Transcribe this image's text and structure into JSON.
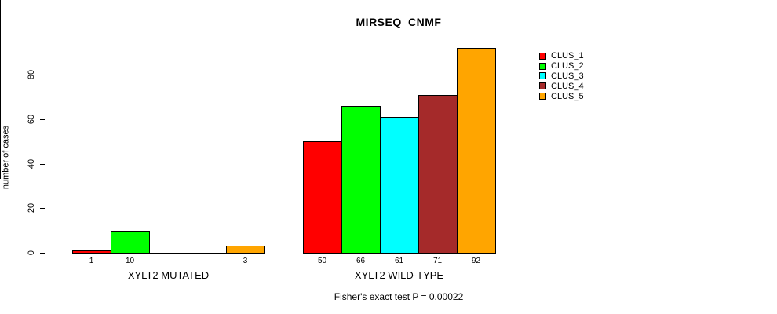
{
  "chart_data": {
    "type": "bar",
    "title": "MIRSEQ_CNMF",
    "ylabel": "number of cases",
    "xlabel": "",
    "yticks": [
      0,
      20,
      40,
      60,
      80
    ],
    "ylim": [
      0,
      92
    ],
    "grid": false,
    "legend_position": "right-outside",
    "legend": [
      "CLUS_1",
      "CLUS_2",
      "CLUS_3",
      "CLUS_4",
      "CLUS_5"
    ],
    "colors": [
      "#FF0000",
      "#00FF00",
      "#00FFFF",
      "#A52A2A",
      "#FFA500"
    ],
    "categories": [
      "XYLT2 MUTATED",
      "XYLT2 WILD-TYPE"
    ],
    "groups": [
      {
        "label": "XYLT2 MUTATED",
        "values": [
          1,
          10,
          0,
          0,
          3
        ]
      },
      {
        "label": "XYLT2 WILD-TYPE",
        "values": [
          50,
          66,
          61,
          71,
          92
        ]
      }
    ],
    "bar_value_labels_shown": [
      "1",
      "10",
      "3",
      "50",
      "66",
      "61",
      "71",
      "92"
    ],
    "note": "Fisher's exact test P = 0.00022",
    "axis_color": "#000000",
    "background_color": "#ffffff"
  }
}
